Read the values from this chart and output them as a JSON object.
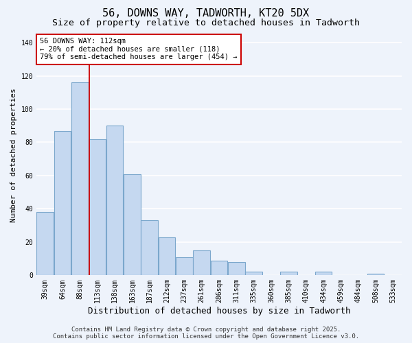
{
  "title": "56, DOWNS WAY, TADWORTH, KT20 5DX",
  "subtitle": "Size of property relative to detached houses in Tadworth",
  "xlabel": "Distribution of detached houses by size in Tadworth",
  "ylabel": "Number of detached properties",
  "categories": [
    "39sqm",
    "64sqm",
    "88sqm",
    "113sqm",
    "138sqm",
    "163sqm",
    "187sqm",
    "212sqm",
    "237sqm",
    "261sqm",
    "286sqm",
    "311sqm",
    "335sqm",
    "360sqm",
    "385sqm",
    "410sqm",
    "434sqm",
    "459sqm",
    "484sqm",
    "508sqm",
    "533sqm"
  ],
  "values": [
    38,
    87,
    116,
    82,
    90,
    61,
    33,
    23,
    11,
    15,
    9,
    8,
    2,
    0,
    2,
    0,
    2,
    0,
    0,
    1,
    0
  ],
  "bar_color": "#c5d8f0",
  "bar_edge_color": "#7ba7cc",
  "vline_x_index": 2.55,
  "vline_color": "#cc0000",
  "annotation_text": "56 DOWNS WAY: 112sqm\n← 20% of detached houses are smaller (118)\n79% of semi-detached houses are larger (454) →",
  "annotation_box_color": "#ffffff",
  "annotation_box_edge_color": "#cc0000",
  "ylim": [
    0,
    145
  ],
  "yticks": [
    0,
    20,
    40,
    60,
    80,
    100,
    120,
    140
  ],
  "footer_line1": "Contains HM Land Registry data © Crown copyright and database right 2025.",
  "footer_line2": "Contains public sector information licensed under the Open Government Licence v3.0.",
  "background_color": "#eef3fb",
  "grid_color": "#ffffff",
  "title_fontsize": 11,
  "subtitle_fontsize": 9.5,
  "xlabel_fontsize": 9,
  "ylabel_fontsize": 8,
  "tick_fontsize": 7,
  "footer_fontsize": 6.5
}
